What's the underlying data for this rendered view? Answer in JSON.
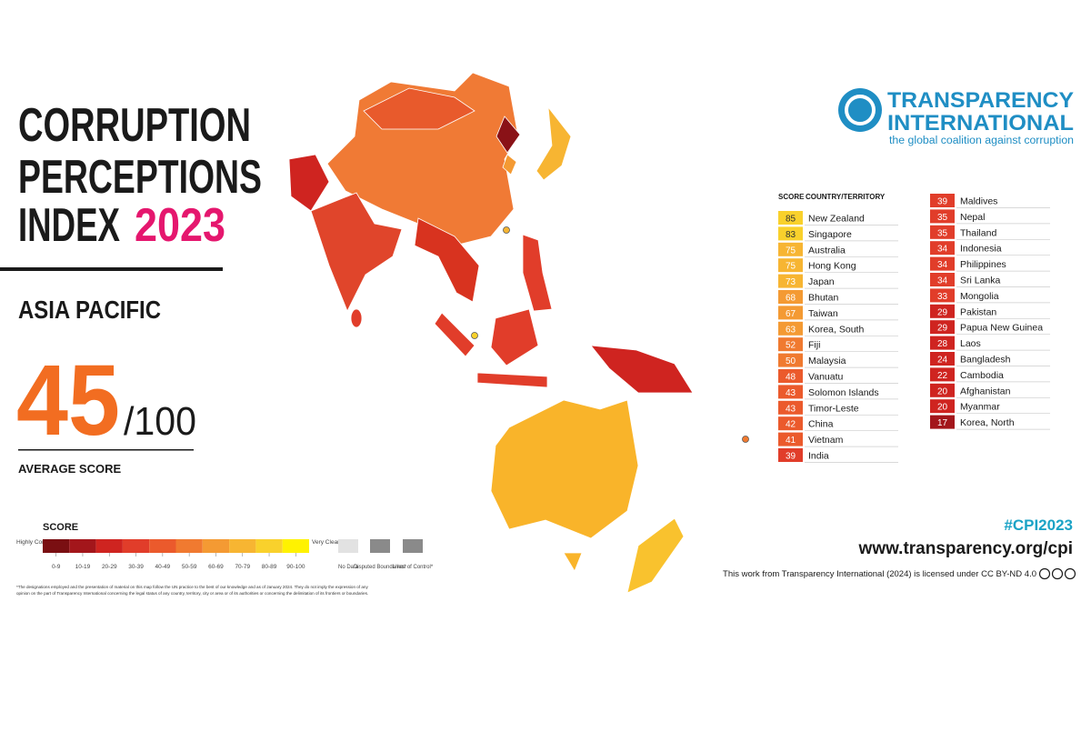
{
  "header": {
    "title_lines": [
      "CORRUPTION",
      "PERCEPTIONS",
      "INDEX"
    ],
    "year": "2023",
    "region": "ASIA PACIFIC"
  },
  "average": {
    "score": "45",
    "out_of": "/100",
    "label": "AVERAGE SCORE"
  },
  "legend": {
    "title": "SCORE",
    "low_label": "Highly Corrupt",
    "high_label": "Very Clean",
    "bins": [
      {
        "label": "0-9",
        "color": "#7a0f12"
      },
      {
        "label": "10-19",
        "color": "#a3161b"
      },
      {
        "label": "20-29",
        "color": "#cf2420"
      },
      {
        "label": "30-39",
        "color": "#e13d2a"
      },
      {
        "label": "40-49",
        "color": "#eb5a2c"
      },
      {
        "label": "50-59",
        "color": "#f07a30"
      },
      {
        "label": "60-69",
        "color": "#f49a33"
      },
      {
        "label": "70-79",
        "color": "#f7b532"
      },
      {
        "label": "80-89",
        "color": "#f9d12c"
      },
      {
        "label": "90-100",
        "color": "#fff200"
      }
    ],
    "extras": [
      "No Data",
      "Disputed Boundaries*",
      "Lines of Control*"
    ]
  },
  "disclaimer": [
    "*The designations employed and the presentation of material on this map follow the UN practice to the best of our knowledge and as of January 2024. They do not imply the expression of any",
    "opinion on the part of Transparency International concerning the legal status of any country, territory, city or area or of its authorities or concerning the delimitation of its frontiers or boundaries."
  ],
  "logo": {
    "line1": "TRANSPARENCY",
    "line2": "INTERNATIONAL",
    "tagline": "the global coalition against corruption"
  },
  "table": {
    "headers": [
      "SCORE",
      "COUNTRY/TERRITORY"
    ],
    "rows": [
      [
        85,
        "New Zealand"
      ],
      [
        83,
        "Singapore"
      ],
      [
        75,
        "Australia"
      ],
      [
        75,
        "Hong Kong"
      ],
      [
        73,
        "Japan"
      ],
      [
        68,
        "Bhutan"
      ],
      [
        67,
        "Taiwan"
      ],
      [
        63,
        "Korea, South"
      ],
      [
        52,
        "Fiji"
      ],
      [
        50,
        "Malaysia"
      ],
      [
        48,
        "Vanuatu"
      ],
      [
        43,
        "Solomon Islands"
      ],
      [
        43,
        "Timor-Leste"
      ],
      [
        42,
        "China"
      ],
      [
        41,
        "Vietnam"
      ],
      [
        39,
        "India"
      ],
      [
        39,
        "Maldives"
      ],
      [
        35,
        "Nepal"
      ],
      [
        35,
        "Thailand"
      ],
      [
        34,
        "Indonesia"
      ],
      [
        34,
        "Philippines"
      ],
      [
        34,
        "Sri Lanka"
      ],
      [
        33,
        "Mongolia"
      ],
      [
        29,
        "Pakistan"
      ],
      [
        29,
        "Papua New Guinea"
      ],
      [
        28,
        "Laos"
      ],
      [
        24,
        "Bangladesh"
      ],
      [
        22,
        "Cambodia"
      ],
      [
        20,
        "Afghanistan"
      ],
      [
        20,
        "Myanmar"
      ],
      [
        17,
        "Korea, North"
      ]
    ]
  },
  "footer": {
    "hashtag": "#CPI2023",
    "url": "www.transparency.org/cpi",
    "license": "This work from Transparency International (2024) is licensed under CC BY-ND 4.0"
  }
}
